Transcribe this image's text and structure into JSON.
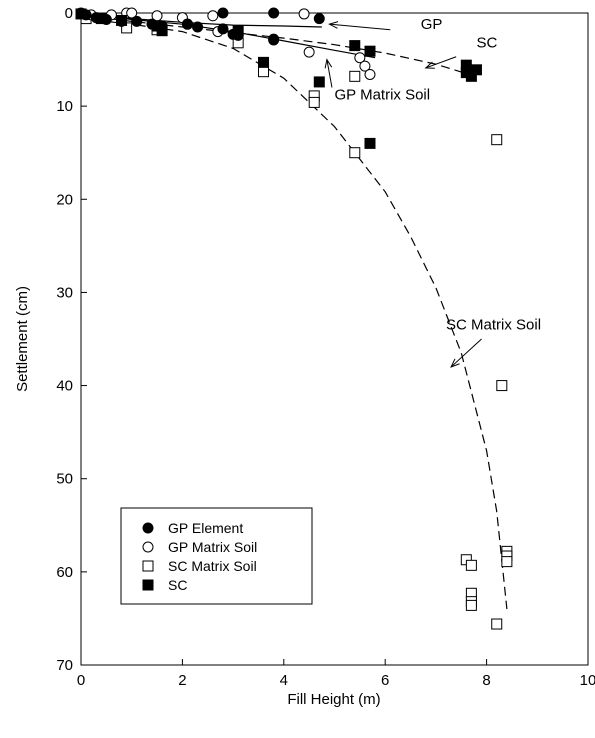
{
  "chart_data": {
    "type": "scatter",
    "xlabel": "Fill Height (m)",
    "ylabel": "Settlement (cm)",
    "xlim": [
      0,
      10
    ],
    "ylim": [
      0,
      70
    ],
    "y_inverted": true,
    "x_ticks": [
      0,
      2,
      4,
      6,
      8,
      10
    ],
    "y_ticks": [
      0,
      10,
      20,
      30,
      40,
      50,
      60,
      70
    ],
    "grid": false,
    "legend_placement": "bottom-left",
    "series": [
      {
        "name": "GP Element",
        "marker": "filled-circle",
        "points": [
          [
            0,
            0
          ],
          [
            0.1,
            0.2
          ],
          [
            0.3,
            0.5
          ],
          [
            0.5,
            0.7
          ],
          [
            0.8,
            0.9
          ],
          [
            1.1,
            0.9
          ],
          [
            1.4,
            1.2
          ],
          [
            1.6,
            1.4
          ],
          [
            2.1,
            1.2
          ],
          [
            2.3,
            1.5
          ],
          [
            2.8,
            1.7
          ],
          [
            2.8,
            0
          ],
          [
            3.0,
            2.3
          ],
          [
            3.1,
            2.4
          ],
          [
            3.8,
            0
          ],
          [
            3.8,
            2.9
          ],
          [
            4.7,
            0.6
          ]
        ]
      },
      {
        "name": "GP Matrix Soil",
        "marker": "open-circle",
        "points": [
          [
            0.2,
            0.2
          ],
          [
            0.6,
            0.2
          ],
          [
            0.9,
            0
          ],
          [
            1.0,
            0
          ],
          [
            1.5,
            0.3
          ],
          [
            2.0,
            0.5
          ],
          [
            2.1,
            1.2
          ],
          [
            2.6,
            0.3
          ],
          [
            2.7,
            2.0
          ],
          [
            3.8,
            2.8
          ],
          [
            4.4,
            0.1
          ],
          [
            4.5,
            4.2
          ],
          [
            5.5,
            4.8
          ],
          [
            5.6,
            5.7
          ],
          [
            5.7,
            6.6
          ]
        ]
      },
      {
        "name": "SC Matrix Soil",
        "marker": "open-square",
        "points": [
          [
            0.1,
            0.6
          ],
          [
            0.9,
            1.6
          ],
          [
            1.5,
            1.8
          ],
          [
            3.1,
            3.2
          ],
          [
            3.6,
            5.8
          ],
          [
            3.6,
            6.3
          ],
          [
            4.6,
            8.9
          ],
          [
            4.6,
            9.6
          ],
          [
            5.4,
            6.8
          ],
          [
            5.4,
            15.0
          ],
          [
            7.6,
            58.7
          ],
          [
            7.7,
            59.3
          ],
          [
            7.7,
            62.3
          ],
          [
            7.7,
            63.2
          ],
          [
            7.7,
            63.6
          ],
          [
            8.2,
            13.6
          ],
          [
            8.2,
            65.6
          ],
          [
            8.3,
            40.0
          ],
          [
            8.4,
            57.8
          ],
          [
            8.4,
            58.3
          ],
          [
            8.4,
            58.9
          ]
        ]
      },
      {
        "name": "SC",
        "marker": "filled-square",
        "points": [
          [
            0,
            0.1
          ],
          [
            0.4,
            0.6
          ],
          [
            0.8,
            0.8
          ],
          [
            1.5,
            1.4
          ],
          [
            1.6,
            1.9
          ],
          [
            3.1,
            1.9
          ],
          [
            3.6,
            5.3
          ],
          [
            4.7,
            7.4
          ],
          [
            5.4,
            3.5
          ],
          [
            5.7,
            4.1
          ],
          [
            5.7,
            14.0
          ],
          [
            7.6,
            5.6
          ],
          [
            7.6,
            6.4
          ],
          [
            7.7,
            6.8
          ],
          [
            7.8,
            6.1
          ]
        ]
      }
    ],
    "trend_lines": [
      {
        "label": "GP",
        "style": "solid",
        "points": [
          [
            0,
            0
          ],
          [
            1,
            0.6
          ],
          [
            2,
            1.0
          ],
          [
            3,
            1.3
          ],
          [
            4,
            1.4
          ],
          [
            4.75,
            1.5
          ]
        ]
      },
      {
        "label": "GP Matrix Soil",
        "style": "solid",
        "points": [
          [
            0,
            0
          ],
          [
            1,
            0.7
          ],
          [
            2,
            1.2
          ],
          [
            3,
            2.0
          ],
          [
            4,
            3.0
          ],
          [
            5,
            4.0
          ],
          [
            5.8,
            4.8
          ]
        ]
      },
      {
        "label": "SC",
        "style": "dashed",
        "points": [
          [
            0,
            0.2
          ],
          [
            1,
            0.9
          ],
          [
            2,
            1.5
          ],
          [
            3,
            2.1
          ],
          [
            4,
            2.7
          ],
          [
            5,
            3.4
          ],
          [
            6,
            4.3
          ],
          [
            7,
            5.5
          ],
          [
            7.6,
            6.5
          ]
        ]
      },
      {
        "label": "SC Matrix Soil",
        "style": "dashed",
        "points": [
          [
            0,
            0.6
          ],
          [
            1,
            1.2
          ],
          [
            2,
            2.0
          ],
          [
            3,
            3.8
          ],
          [
            4,
            7.0
          ],
          [
            5,
            12.2
          ],
          [
            6,
            19.2
          ],
          [
            6.5,
            24.0
          ],
          [
            7,
            29.5
          ],
          [
            7.5,
            36.5
          ],
          [
            8,
            47.0
          ],
          [
            8.2,
            53.5
          ],
          [
            8.4,
            64.0
          ]
        ]
      }
    ],
    "annotations": [
      {
        "text": "GP",
        "text_at": [
          6.7,
          1.7
        ],
        "arrow_from": [
          6.1,
          1.8
        ],
        "arrow_to": [
          4.9,
          1.2
        ]
      },
      {
        "text": "SC",
        "text_at": [
          7.8,
          3.7
        ],
        "arrow_from": [
          7.4,
          4.7
        ],
        "arrow_to": [
          6.8,
          5.9
        ]
      },
      {
        "text": "GP Matrix Soil",
        "text_at": [
          5.0,
          9.3
        ],
        "arrow_from": [
          4.95,
          8.0
        ],
        "arrow_to": [
          4.85,
          5.0
        ]
      },
      {
        "text": "SC Matrix Soil",
        "text_at": [
          7.2,
          34.0
        ],
        "arrow_from": [
          7.9,
          35.0
        ],
        "arrow_to": [
          7.3,
          38.0
        ]
      }
    ]
  }
}
